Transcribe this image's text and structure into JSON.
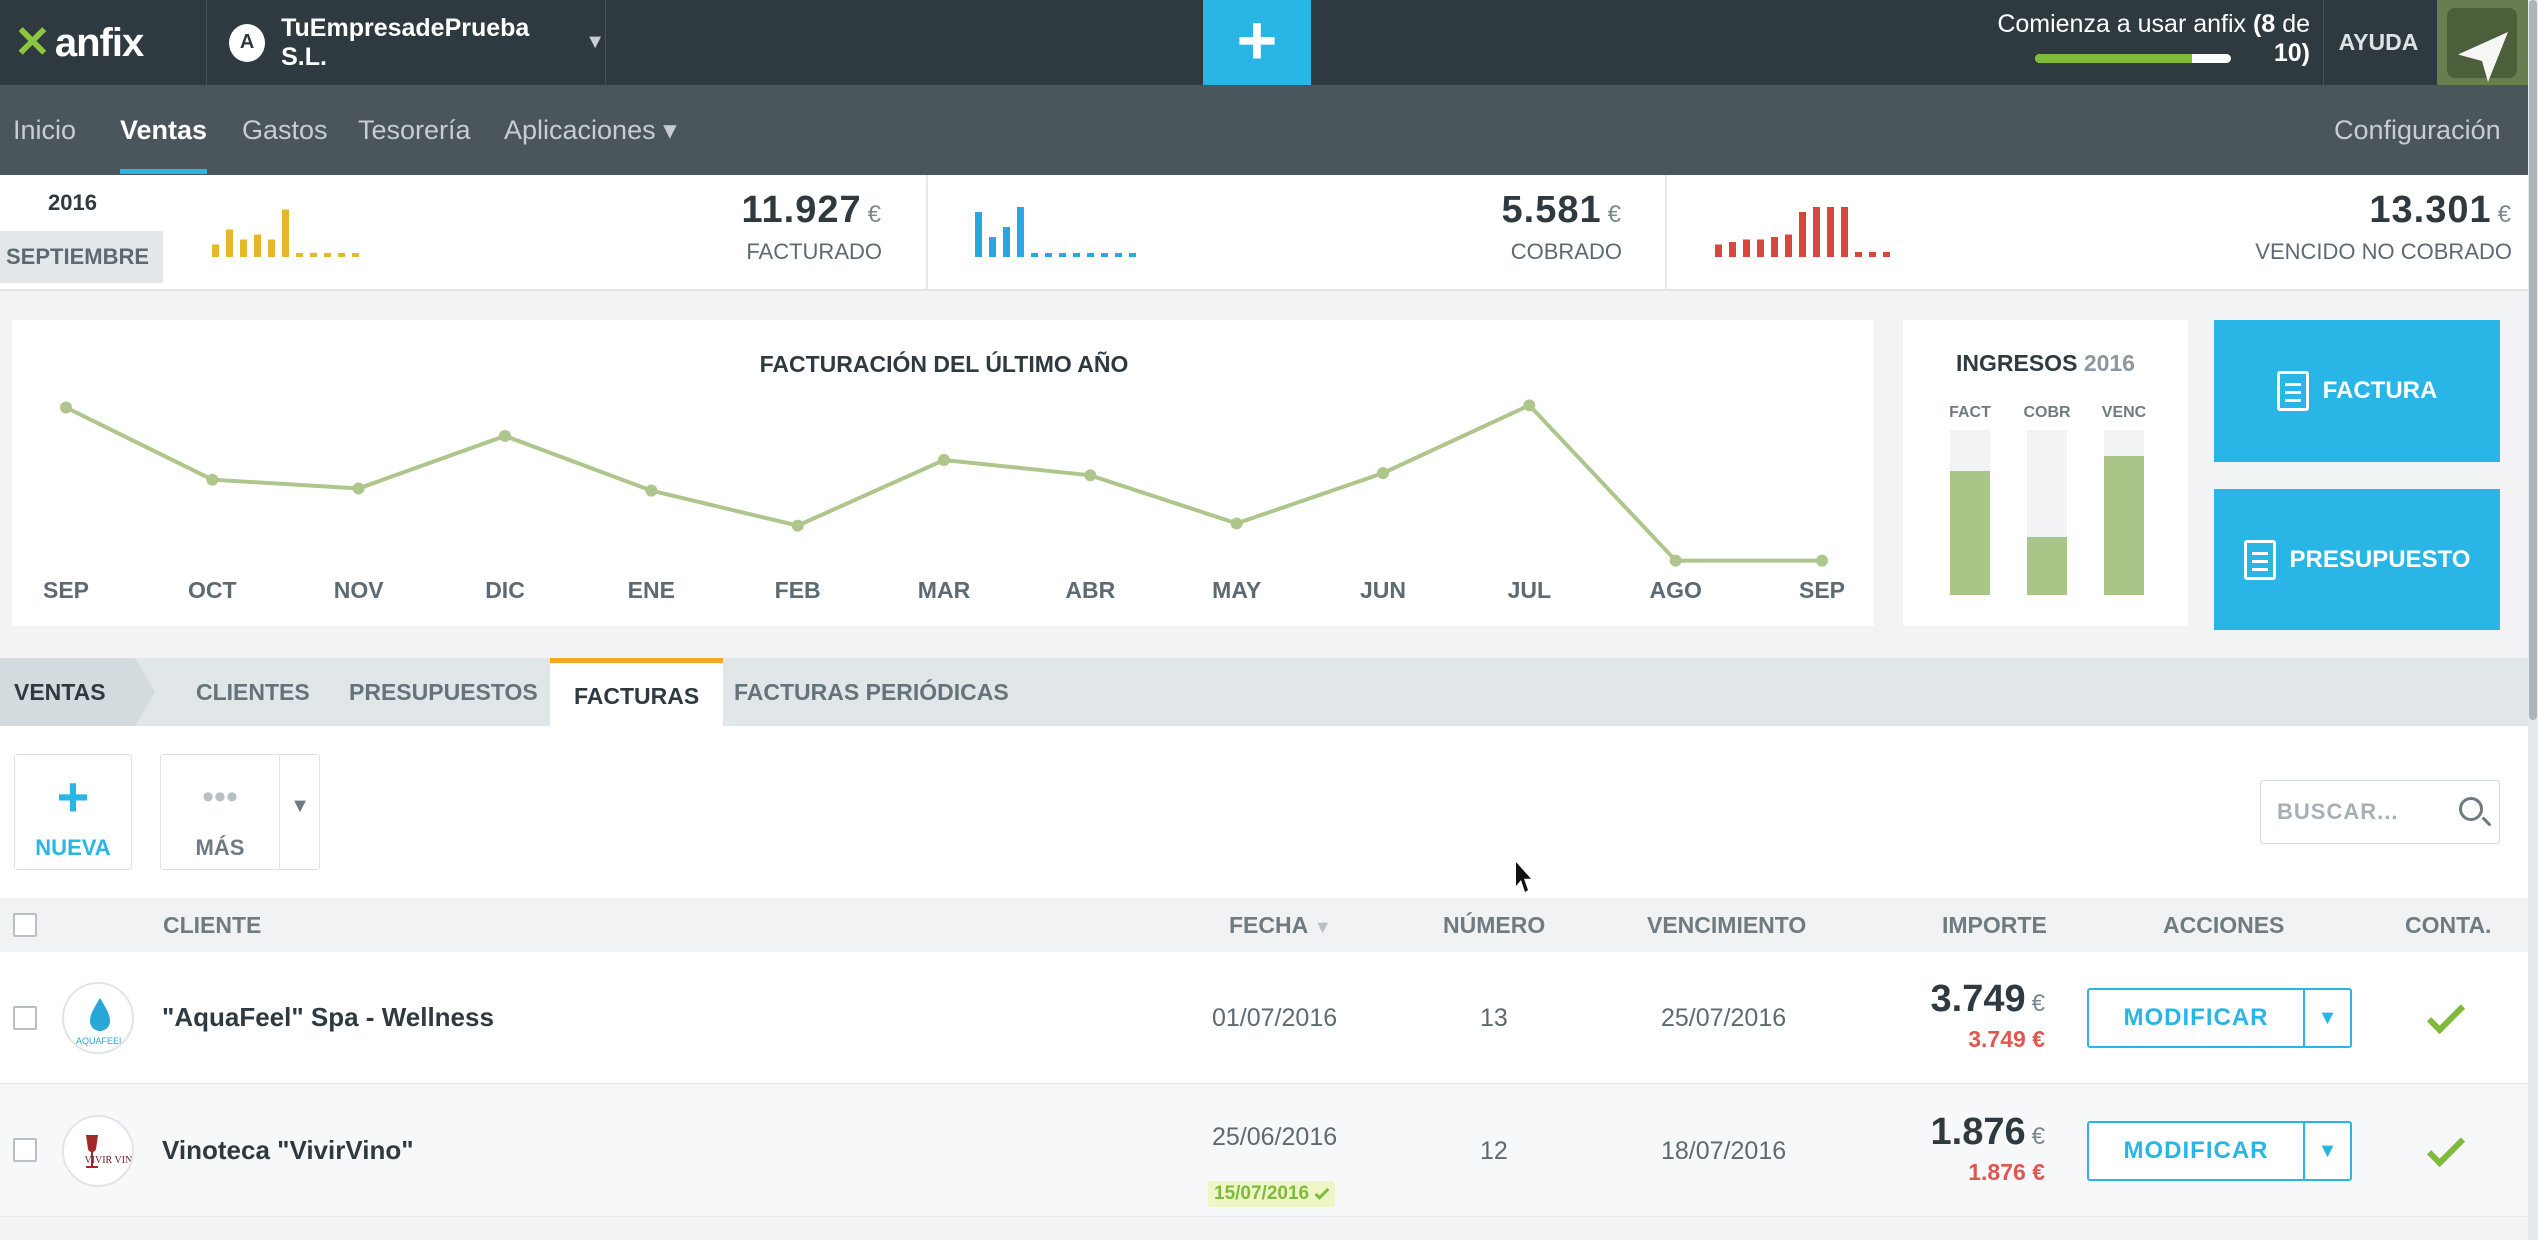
{
  "app": {
    "logo": "anfix",
    "company": "TuEmpresadePrueba S.L.",
    "company_badge": "A",
    "new_button": "+"
  },
  "onboarding": {
    "text": "Comienza a usar anfix",
    "open": "(",
    "done": "8",
    "of": "de",
    "total": "10",
    "close": ")",
    "progress_fraction": 0.8
  },
  "help": "AYUDA",
  "nav": {
    "items": [
      "Inicio",
      "Ventas",
      "Gastos",
      "Tesorería",
      "Aplicaciones ▾"
    ],
    "active": "Ventas",
    "settings": "Configuración"
  },
  "kpi": {
    "year": "2016",
    "month": "SEPTIEMBRE",
    "facturado": {
      "value": "11.927",
      "currency": "€",
      "label": "FACTURADO",
      "color": "#e5b72b",
      "bars": [
        0.25,
        0.55,
        0.35,
        0.45,
        0.35,
        0.95,
        0.08,
        0.08,
        0.08,
        0.08,
        0.08
      ]
    },
    "cobrado": {
      "value": "5.581",
      "currency": "€",
      "label": "COBRADO",
      "color": "#29a8e0",
      "bars": [
        0.9,
        0.4,
        0.6,
        1.0,
        0.08,
        0.08,
        0.08,
        0.08,
        0.08,
        0.08,
        0.08,
        0.08
      ]
    },
    "vencido": {
      "value": "13.301",
      "currency": "€",
      "label": "VENCIDO NO COBRADO",
      "color": "#d8473f",
      "bars": [
        0.25,
        0.3,
        0.35,
        0.35,
        0.4,
        0.45,
        0.9,
        1.0,
        1.0,
        1.0,
        0.1,
        0.1,
        0.1
      ]
    }
  },
  "chart_data": {
    "type": "line",
    "title": "FACTURACIÓN DEL ÚLTIMO AÑO",
    "categories": [
      "SEP",
      "OCT",
      "NOV",
      "DIC",
      "ENE",
      "FEB",
      "MAR",
      "ABR",
      "MAY",
      "JUN",
      "JUL",
      "AGO",
      "SEP"
    ],
    "values": [
      7.2,
      3.9,
      3.5,
      5.9,
      3.4,
      1.8,
      4.8,
      4.1,
      1.9,
      4.2,
      7.3,
      0.2,
      0.2
    ],
    "ylim": [
      0,
      8
    ],
    "color": "#aec68c",
    "grid": false,
    "legend": "none"
  },
  "ingresos": {
    "title": "INGRESOS",
    "year": "2016",
    "bars": [
      {
        "label": "FACT",
        "fraction": 0.75
      },
      {
        "label": "COBR",
        "fraction": 0.35
      },
      {
        "label": "VENC",
        "fraction": 0.84
      }
    ]
  },
  "actions": {
    "invoice": "FACTURA",
    "quote": "PRESUPUESTO"
  },
  "tabs": {
    "section": "VENTAS",
    "items": [
      "CLIENTES",
      "PRESUPUESTOS",
      "FACTURAS",
      "FACTURAS PERIÓDICAS"
    ],
    "active": "FACTURAS"
  },
  "toolbar": {
    "new_label": "NUEVA",
    "more_label": "MÁS",
    "more_icon": "•••",
    "new_icon": "+"
  },
  "search": {
    "placeholder": "BUSCAR..."
  },
  "table": {
    "columns": {
      "client": "CLIENTE",
      "date": "FECHA",
      "number": "NÚMERO",
      "due": "VENCIMIENTO",
      "amount": "IMPORTE",
      "actions": "ACCIONES",
      "accounting": "CONTA."
    },
    "rows": [
      {
        "client": "\"AquaFeel\" Spa - Wellness",
        "logo": "AQUAFEEL",
        "date": "01/07/2016",
        "paid_date": "",
        "number": "13",
        "due": "25/07/2016",
        "amount": "3.749",
        "currency": "€",
        "pending": "3.749 €",
        "action": "MODIFICAR"
      },
      {
        "client": "Vinoteca \"VivirVino\"",
        "logo": "VIVIR VINO",
        "date": "25/06/2016",
        "paid_date": "15/07/2016",
        "number": "12",
        "due": "18/07/2016",
        "amount": "1.876",
        "currency": "€",
        "pending": "1.876 €",
        "action": "MODIFICAR"
      }
    ]
  }
}
